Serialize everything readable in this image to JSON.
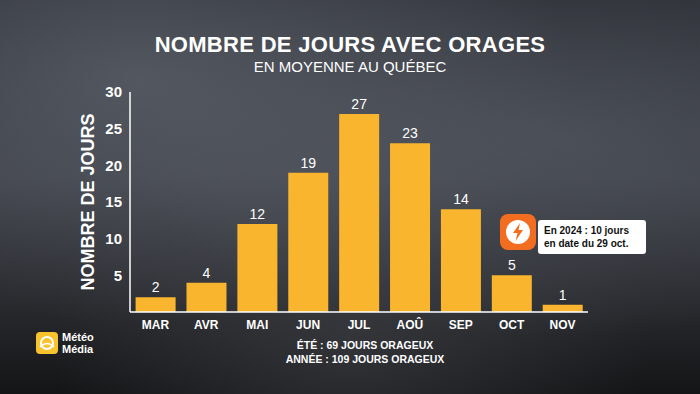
{
  "chart_data": {
    "type": "bar",
    "title": "NOMBRE DE JOURS AVEC ORAGES",
    "subtitle": "EN MOYENNE AU QUÉBEC",
    "y_label": "NOMBRE DE JOURS",
    "categories": [
      "MAR",
      "AVR",
      "MAI",
      "JUN",
      "JUL",
      "AOÛ",
      "SEP",
      "OCT",
      "NOV"
    ],
    "values": [
      2,
      4,
      12,
      19,
      27,
      23,
      14,
      5,
      1
    ],
    "color": "#f9b52e",
    "ylim": [
      0,
      30
    ],
    "yticks": [
      5,
      10,
      15,
      20,
      25,
      30
    ],
    "grid": false,
    "data_labels": true,
    "annotations": [
      "En 2024 : 10 jours",
      "en date du 29 oct."
    ],
    "notes": [
      "ÉTÉ : 69 JOURS ORAGEUX",
      "ANNÉE : 109 JOURS ORAGEUX"
    ],
    "source": "Météo Média"
  }
}
